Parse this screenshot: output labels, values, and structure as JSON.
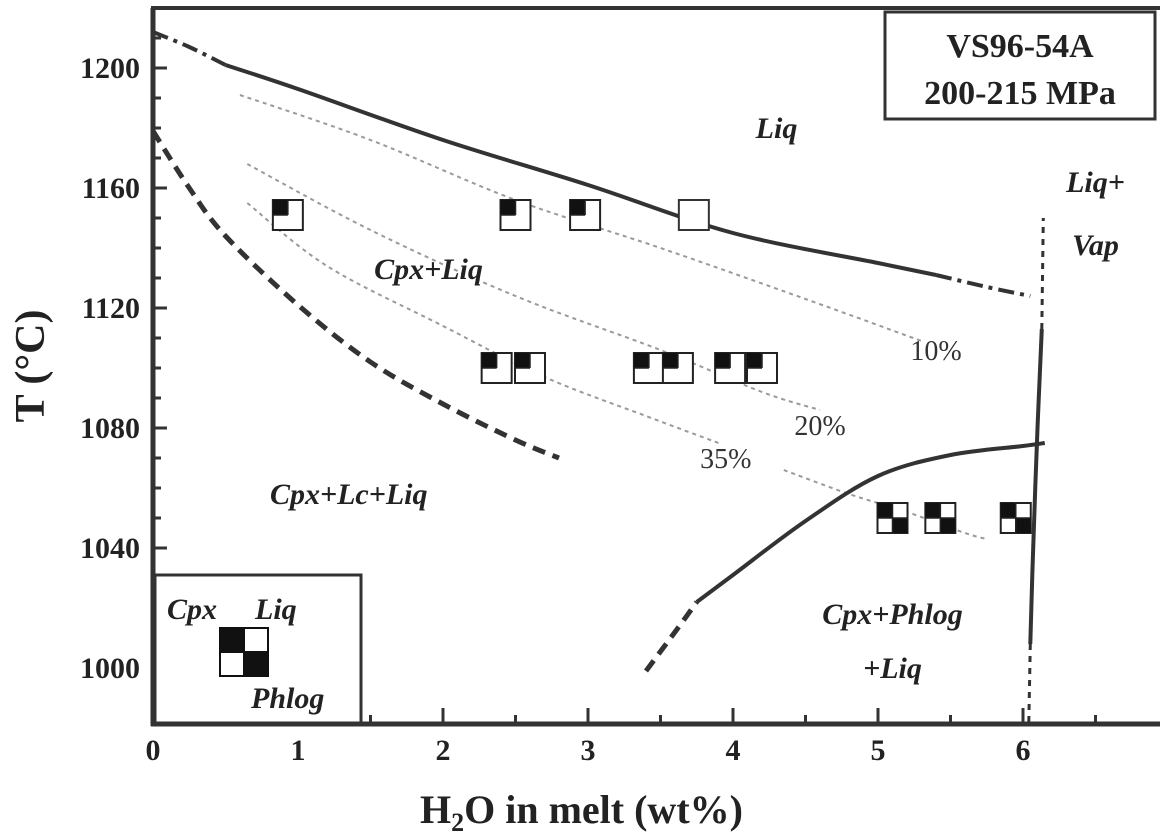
{
  "chart_data": {
    "type": "phase_diagram",
    "title_lines": [
      "VS96-54A",
      "200-215 MPa"
    ],
    "xlabel": {
      "main": "H",
      "sub": "2",
      "rest": "O in melt (wt%)"
    },
    "ylabel": "T (°C)",
    "xlim": [
      0,
      7
    ],
    "ylim": [
      980,
      1215
    ],
    "xticks": [
      0,
      1,
      2,
      3,
      4,
      5,
      6
    ],
    "yticks": [
      1000,
      1040,
      1080,
      1120,
      1160,
      1200
    ],
    "fields": [
      {
        "label": "Liq",
        "x": 4.3,
        "y": 1180
      },
      {
        "label": "Cpx+Liq",
        "x": 1.9,
        "y": 1133
      },
      {
        "label": "Cpx+Lc+Liq",
        "x": 1.35,
        "y": 1058
      },
      {
        "label": "Liq+",
        "x": 6.5,
        "y": 1162
      },
      {
        "label": "Vap",
        "x": 6.5,
        "y": 1141
      },
      {
        "label": "Cpx+Phlog",
        "x": 5.1,
        "y": 1018
      },
      {
        "label": "+Liq",
        "x": 5.1,
        "y": 1000
      }
    ],
    "contour_labels": [
      {
        "label": "10%",
        "x": 5.4,
        "y": 1106
      },
      {
        "label": "20%",
        "x": 4.6,
        "y": 1081
      },
      {
        "label": "35%",
        "x": 3.95,
        "y": 1070
      }
    ],
    "boundaries": [
      {
        "name": "liquidus",
        "style": "solid",
        "points": [
          [
            0.5,
            1201
          ],
          [
            1,
            1193
          ],
          [
            2,
            1176
          ],
          [
            3,
            1161
          ],
          [
            4,
            1145
          ],
          [
            5,
            1135
          ],
          [
            5.4,
            1131
          ]
        ]
      },
      {
        "name": "liquidus-ext-left",
        "style": "dash-dot",
        "points": [
          [
            0,
            1212
          ],
          [
            0.25,
            1207
          ],
          [
            0.5,
            1201
          ]
        ]
      },
      {
        "name": "liquidus-ext-right",
        "style": "dash-dot",
        "points": [
          [
            5.4,
            1131
          ],
          [
            5.75,
            1127
          ],
          [
            6.05,
            1124
          ]
        ]
      },
      {
        "name": "leucite-out",
        "style": "dashed",
        "points": [
          [
            0,
            1179
          ],
          [
            0.25,
            1160
          ],
          [
            0.5,
            1144
          ],
          [
            1,
            1121
          ],
          [
            1.5,
            1102
          ],
          [
            2,
            1088
          ],
          [
            2.5,
            1076
          ],
          [
            2.8,
            1070
          ]
        ]
      },
      {
        "name": "phlog-in",
        "style": "solid",
        "points": [
          [
            3.75,
            1022
          ],
          [
            4,
            1031
          ],
          [
            4.5,
            1049
          ],
          [
            5,
            1064
          ],
          [
            5.5,
            1071
          ],
          [
            6,
            1074
          ],
          [
            6.15,
            1075
          ]
        ]
      },
      {
        "name": "phlog-in-ext",
        "style": "dashed",
        "points": [
          [
            3.4,
            999
          ],
          [
            3.6,
            1012
          ],
          [
            3.75,
            1022
          ]
        ]
      },
      {
        "name": "vapor-saturation",
        "style": "solid",
        "points": [
          [
            6.13,
            1113
          ],
          [
            6.1,
            1080
          ],
          [
            6.07,
            1040
          ],
          [
            6.05,
            1008
          ]
        ]
      },
      {
        "name": "vapor-ext-top",
        "style": "dotted",
        "points": [
          [
            6.13,
            1113
          ],
          [
            6.14,
            1150
          ]
        ]
      },
      {
        "name": "vapor-ext-bottom",
        "style": "dotted",
        "points": [
          [
            6.05,
            1008
          ],
          [
            6.04,
            982
          ]
        ]
      }
    ],
    "isopleths": [
      {
        "label": "10%",
        "points": [
          [
            0.6,
            1191
          ],
          [
            1.5,
            1176
          ],
          [
            2.5,
            1156
          ],
          [
            3.5,
            1140
          ],
          [
            4.5,
            1123
          ],
          [
            5.3,
            1109
          ]
        ]
      },
      {
        "label": "20%",
        "points": [
          [
            0.65,
            1168
          ],
          [
            1.5,
            1146
          ],
          [
            2.5,
            1124
          ],
          [
            3.5,
            1106
          ],
          [
            4.2,
            1092
          ],
          [
            4.6,
            1086
          ]
        ]
      },
      {
        "label": "35%",
        "points": [
          [
            0.65,
            1155
          ],
          [
            1.2,
            1134
          ],
          [
            2,
            1114
          ],
          [
            2.7,
            1097
          ],
          [
            3.4,
            1084
          ],
          [
            3.9,
            1075
          ]
        ]
      },
      {
        "label": "35%-continued",
        "points": [
          [
            4.35,
            1066
          ],
          [
            4.8,
            1058
          ],
          [
            5.2,
            1052
          ],
          [
            5.6,
            1045
          ],
          [
            5.75,
            1043
          ]
        ]
      }
    ],
    "experiments": [
      {
        "x": 0.93,
        "y": 1151,
        "cpx": true,
        "liq": false,
        "phlog": false
      },
      {
        "x": 2.5,
        "y": 1151,
        "cpx": true,
        "liq": false,
        "phlog": false
      },
      {
        "x": 2.98,
        "y": 1151,
        "cpx": true,
        "liq": false,
        "phlog": false
      },
      {
        "x": 3.73,
        "y": 1151,
        "cpx": false,
        "liq": false,
        "phlog": false
      },
      {
        "x": 2.37,
        "y": 1100,
        "cpx": true,
        "liq": false,
        "phlog": false
      },
      {
        "x": 2.6,
        "y": 1100,
        "cpx": true,
        "liq": false,
        "phlog": false
      },
      {
        "x": 3.42,
        "y": 1100,
        "cpx": true,
        "liq": false,
        "phlog": false
      },
      {
        "x": 3.62,
        "y": 1100,
        "cpx": true,
        "liq": false,
        "phlog": false
      },
      {
        "x": 3.98,
        "y": 1100,
        "cpx": true,
        "liq": false,
        "phlog": false
      },
      {
        "x": 4.2,
        "y": 1100,
        "cpx": true,
        "liq": false,
        "phlog": false
      },
      {
        "x": 5.1,
        "y": 1050,
        "cpx": true,
        "liq": false,
        "phlog": true
      },
      {
        "x": 5.43,
        "y": 1050,
        "cpx": true,
        "liq": false,
        "phlog": true
      },
      {
        "x": 5.95,
        "y": 1050,
        "cpx": true,
        "liq": false,
        "phlog": true
      }
    ],
    "legend": {
      "position": "bottom-left",
      "labels": {
        "cpx": "Cpx",
        "liq": "Liq",
        "phlog": "Phlog"
      }
    }
  }
}
